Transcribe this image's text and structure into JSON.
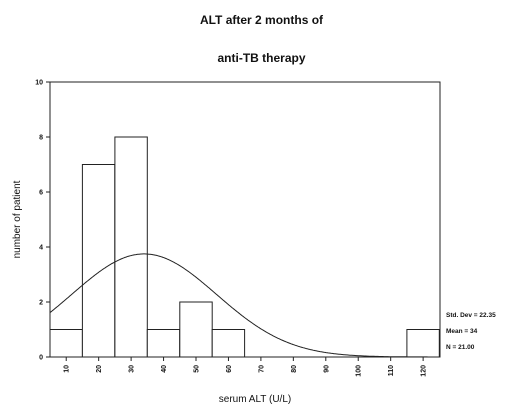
{
  "chart_data": {
    "type": "bar",
    "title_line1": "ALT after 2 months of",
    "title_line2": "anti-TB therapy",
    "xlabel": "serum ALT (U/L)",
    "ylabel": "number of patient",
    "categories": [
      "10",
      "20",
      "30",
      "40",
      "50",
      "60",
      "70",
      "80",
      "90",
      "100",
      "110",
      "120"
    ],
    "values": [
      1,
      7,
      8,
      1,
      2,
      1,
      0,
      0,
      0,
      0,
      0,
      1
    ],
    "bin_width": 10,
    "ylim": [
      0,
      10
    ],
    "yticks": [
      "0",
      "2",
      "4",
      "6",
      "8",
      "10"
    ],
    "normal_curve": {
      "mean": 34,
      "std_dev": 22.35,
      "n": 21
    },
    "stats_text": [
      "Std. Dev = 22.35",
      "Mean = 34",
      "N = 21.00"
    ],
    "grid": false
  }
}
